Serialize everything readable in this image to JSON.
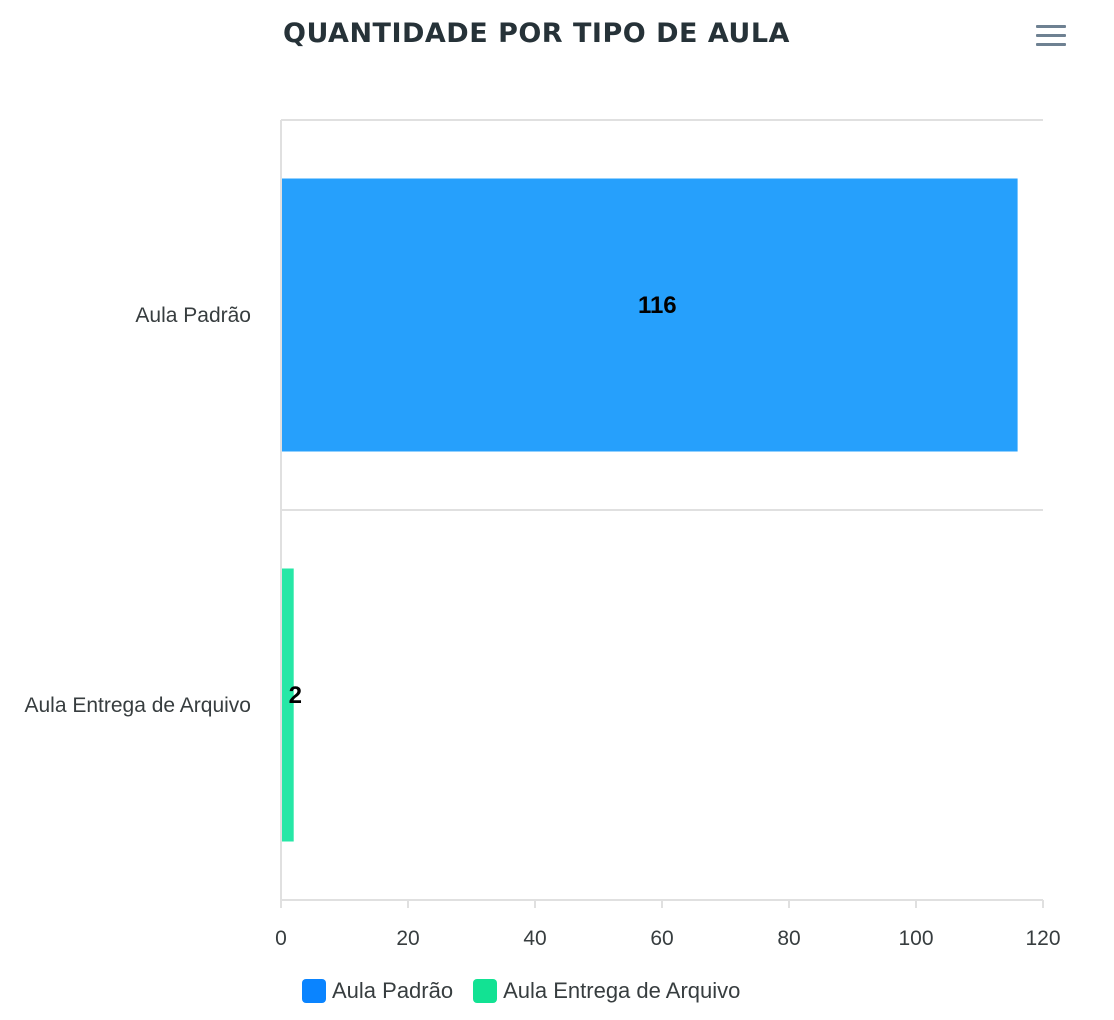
{
  "header": {
    "title": "QUANTIDADE POR TIPO DE AULA",
    "menu_icon": "hamburger-menu-icon"
  },
  "chart_data": {
    "type": "bar",
    "orientation": "horizontal",
    "title": "QUANTIDADE POR TIPO DE AULA",
    "xlabel": "",
    "ylabel": "",
    "categories": [
      "Aula Padrão",
      "Aula Entrega de Arquivo"
    ],
    "values": [
      116,
      2
    ],
    "data_labels": [
      "116",
      "2"
    ],
    "colors": [
      "#26a0fc",
      "#26e7a6"
    ],
    "xlim": [
      0,
      120
    ],
    "x_ticks": [
      0,
      20,
      40,
      60,
      80,
      100,
      120
    ],
    "grid": true,
    "legend_position": "bottom"
  },
  "legend": {
    "items": [
      {
        "label": "Aula Padrão",
        "color": "#0a84ff"
      },
      {
        "label": "Aula Entrega de Arquivo",
        "color": "#12e293"
      }
    ]
  }
}
